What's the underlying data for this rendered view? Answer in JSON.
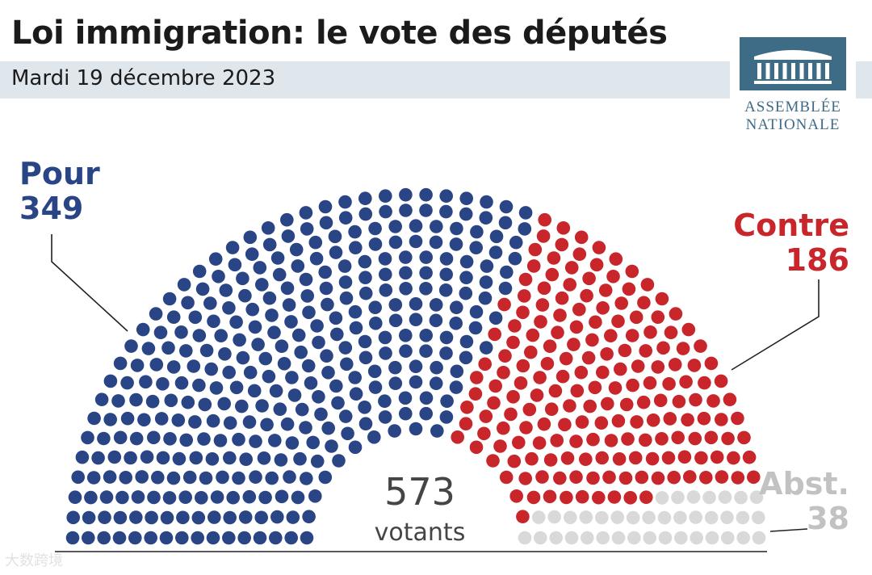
{
  "title": "Loi immigration: le vote des députés",
  "subtitle": "Mardi 19 décembre 2023",
  "logo": {
    "line1": "ASSEMBLÉE",
    "line2": "NATIONALE",
    "color": "#3e6b86"
  },
  "watermark": "大数跨境",
  "chart_data": {
    "type": "hemicycle",
    "categories": [
      "Pour",
      "Contre",
      "Abst."
    ],
    "values": [
      349,
      186,
      38
    ],
    "colors": [
      "#2a4586",
      "#c8262b",
      "#d9d9d9"
    ],
    "total": {
      "value": "573",
      "label": "votants"
    },
    "labels": {
      "pour": {
        "name": "Pour",
        "value": "349"
      },
      "contre": {
        "name": "Contre",
        "value": "186"
      },
      "abst": {
        "name": "Abst.",
        "value": "38"
      }
    }
  }
}
